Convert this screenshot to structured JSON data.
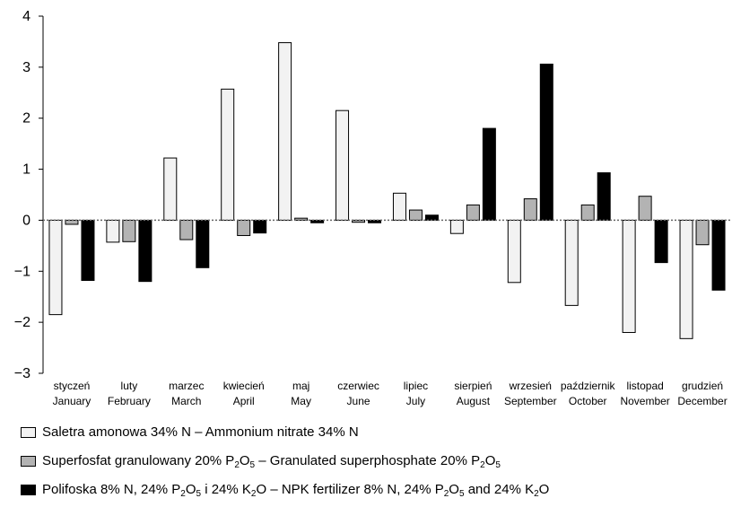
{
  "chart_data": {
    "type": "bar",
    "title": "",
    "xlabel": "",
    "ylabel": "",
    "ylim": [
      -3,
      4
    ],
    "yticks": [
      "−3",
      "−2",
      "−1",
      "0",
      "1",
      "2",
      "3",
      "4"
    ],
    "categories": [
      {
        "pl": "styczeń",
        "en": "January"
      },
      {
        "pl": "luty",
        "en": "February"
      },
      {
        "pl": "marzec",
        "en": "March"
      },
      {
        "pl": "kwiecień",
        "en": "April"
      },
      {
        "pl": "maj",
        "en": "May"
      },
      {
        "pl": "czerwiec",
        "en": "June"
      },
      {
        "pl": "lipiec",
        "en": "July"
      },
      {
        "pl": "sierpień",
        "en": "August"
      },
      {
        "pl": "wrzesień",
        "en": "September"
      },
      {
        "pl": "październik",
        "en": "October"
      },
      {
        "pl": "listopad",
        "en": "November"
      },
      {
        "pl": "grudzień",
        "en": "December"
      }
    ],
    "series": [
      {
        "name": "Saletra amonowa 34% N – Ammonium nitrate 34% N",
        "color": "#f2f2f2",
        "values": [
          -1.85,
          -0.43,
          1.22,
          2.57,
          3.48,
          2.15,
          0.53,
          -0.26,
          -1.22,
          -1.67,
          -2.2,
          -2.32
        ]
      },
      {
        "name": "Superfosfat granulowany 20% P2O5 – Granulated superphosphate 20% P2O5",
        "color": "#b3b3b3",
        "values": [
          -0.08,
          -0.42,
          -0.38,
          -0.3,
          0.04,
          -0.04,
          0.2,
          0.3,
          0.42,
          0.3,
          0.47,
          -0.48
        ]
      },
      {
        "name": "Polifoska 8% N, 24% P2O5 i 24% K2O – NPK fertilizer 8% N, 24% P2O5 and 24% K2O",
        "color": "#000000",
        "values": [
          -1.18,
          -1.2,
          -0.93,
          -0.25,
          -0.05,
          -0.05,
          0.1,
          1.8,
          3.06,
          0.93,
          -0.83,
          -1.37
        ]
      }
    ],
    "grid": false,
    "legend_position": "bottom"
  },
  "legend": [
    {
      "html": "Saletra amonowa 34% N – Ammonium nitrate 34% N",
      "color": "#f2f2f2"
    },
    {
      "html": "Superfosfat granulowany 20% P<sub>2</sub>O<sub>5</sub> – Granulated superphosphate 20% P<sub>2</sub>O<sub>5</sub>",
      "color": "#b3b3b3"
    },
    {
      "html": "Polifoska 8% N, 24% P<sub>2</sub>O<sub>5</sub> i 24% K<sub>2</sub>O – NPK fertilizer 8% N, 24% P<sub>2</sub>O<sub>5</sub> and 24% K<sub>2</sub>O",
      "color": "#000000"
    }
  ]
}
